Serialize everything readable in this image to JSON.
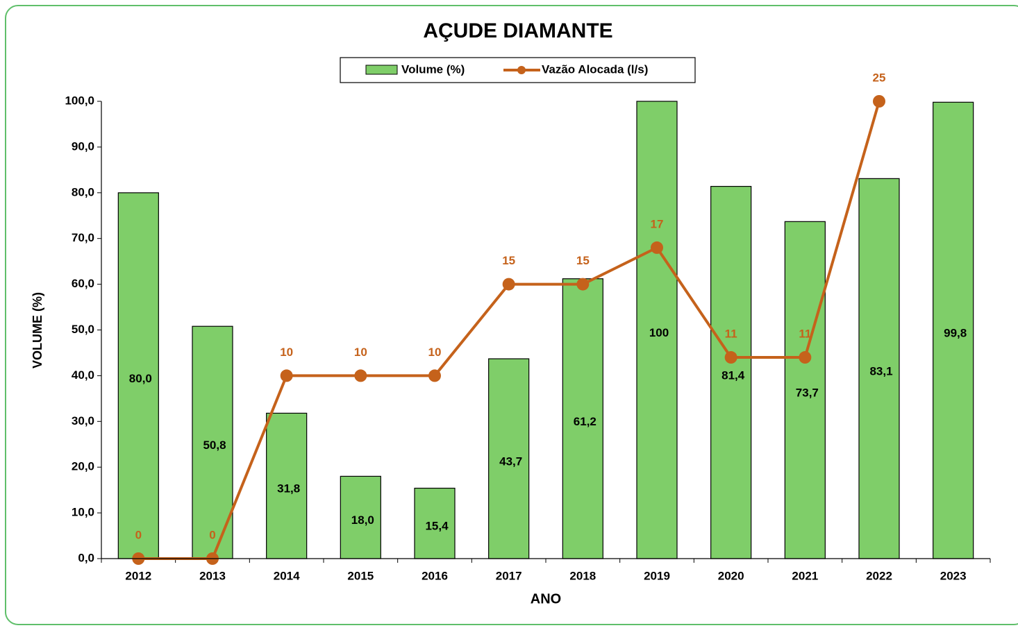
{
  "chart_data": {
    "type": "bar",
    "title": "AÇUDE DIAMANTE",
    "x_label": "ANO",
    "y_label": "VOLUME (%)",
    "categories": [
      "2012",
      "2013",
      "2014",
      "2015",
      "2016",
      "2017",
      "2018",
      "2019",
      "2020",
      "2021",
      "2022",
      "2023"
    ],
    "series": [
      {
        "name": "Volume (%)",
        "type": "bar",
        "color": "#7fce69",
        "values": [
          80.0,
          50.8,
          31.8,
          18.0,
          15.4,
          43.7,
          61.2,
          100,
          81.4,
          73.7,
          83.1,
          99.8
        ],
        "value_labels": [
          "80,0",
          "50,8",
          "31,8",
          "18,0",
          "15,4",
          "43,7",
          "61,2",
          "100",
          "81,4",
          "73,7",
          "83,1",
          "99,8"
        ]
      },
      {
        "name": "Vazão Alocada (l/s)",
        "type": "line",
        "axis": "y2",
        "color": "#c5621b",
        "values": [
          0,
          0,
          10,
          10,
          10,
          15,
          15,
          17,
          11,
          11,
          25,
          null
        ]
      }
    ],
    "ylim": [
      0,
      100
    ],
    "yticks": [
      {
        "value": 0,
        "label": "0,0"
      },
      {
        "value": 10,
        "label": "10,0"
      },
      {
        "value": 20,
        "label": "20,0"
      },
      {
        "value": 30,
        "label": "30,0"
      },
      {
        "value": 40,
        "label": "40,0"
      },
      {
        "value": 50,
        "label": "50,0"
      },
      {
        "value": 60,
        "label": "60,0"
      },
      {
        "value": 70,
        "label": "70,0"
      },
      {
        "value": 80,
        "label": "80,0"
      },
      {
        "value": 90,
        "label": "90,0"
      },
      {
        "value": 100,
        "label": "100,0"
      }
    ],
    "y2lim": [
      0,
      25
    ],
    "legend": "top"
  }
}
